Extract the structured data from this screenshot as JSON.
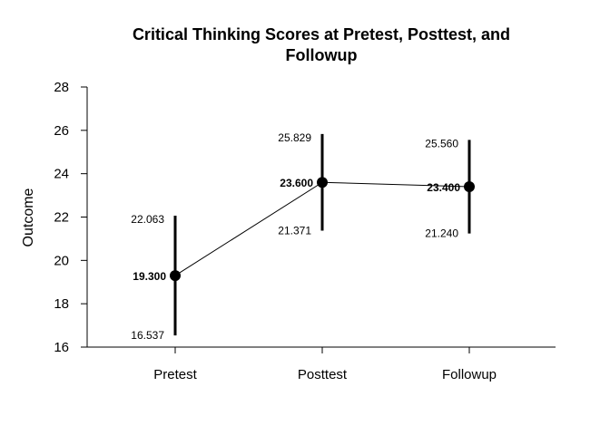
{
  "chart_data": {
    "type": "line",
    "title_lines": [
      "Critical Thinking Scores at Pretest, Posttest, and",
      "Followup"
    ],
    "xlabel": "",
    "ylabel": "Outcome",
    "categories": [
      "Pretest",
      "Posttest",
      "Followup"
    ],
    "ylim": [
      16,
      28
    ],
    "yticks": [
      16,
      18,
      20,
      22,
      24,
      26,
      28
    ],
    "grid": false,
    "series": [
      {
        "means": [
          19.3,
          23.6,
          23.4
        ],
        "upper": [
          22.063,
          25.829,
          25.56
        ],
        "lower": [
          16.537,
          21.371,
          21.24
        ],
        "mean_labels": [
          "19.300",
          "23.600",
          "23.400"
        ],
        "upper_labels": [
          "22.063",
          "25.829",
          "25.560"
        ],
        "lower_labels": [
          "16.537",
          "21.371",
          "21.240"
        ]
      }
    ],
    "colors": {
      "line": "#000000",
      "point": "#000000"
    }
  }
}
